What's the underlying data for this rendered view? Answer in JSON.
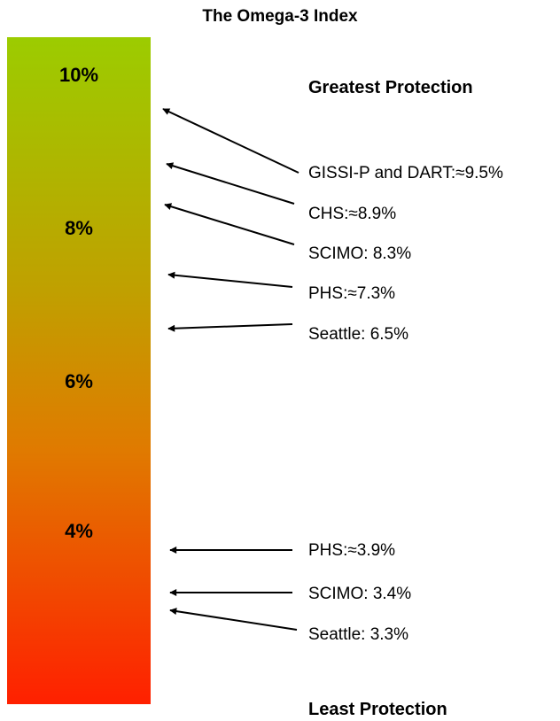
{
  "title": "The Omega-3 Index",
  "scale": {
    "ticks": [
      "10%",
      "8%",
      "6%",
      "4%"
    ],
    "gradient_colors": [
      "#9ccc00",
      "#c0a000",
      "#e07a00",
      "#ff2000"
    ]
  },
  "headings": {
    "top": "Greatest Protection",
    "bottom": "Least Protection"
  },
  "annotations": [
    {
      "text": "GISSI-P and DART:≈9.5%"
    },
    {
      "text": "CHS:≈8.9%"
    },
    {
      "text": "SCIMO: 8.3%"
    },
    {
      "text": "PHS:≈7.3%"
    },
    {
      "text": "Seattle: 6.5%"
    },
    {
      "text": "PHS:≈3.9%"
    },
    {
      "text": "SCIMO: 3.4%"
    },
    {
      "text": "Seattle: 3.3%"
    }
  ]
}
